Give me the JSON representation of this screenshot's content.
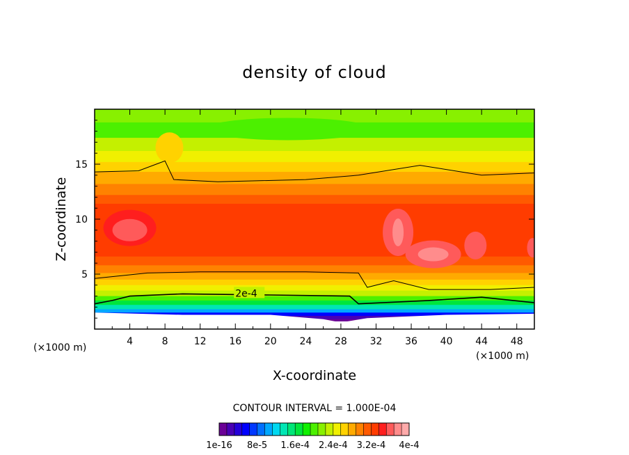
{
  "chart_data": {
    "type": "heatmap",
    "title": "density of cloud",
    "xlabel": "X-coordinate",
    "ylabel": "Z-coordinate",
    "x_unit_left": "(×1000 m)",
    "x_unit_right": "(×1000 m)",
    "xlim": [
      0,
      50
    ],
    "ylim": [
      0,
      20
    ],
    "x_ticks": [
      4,
      8,
      12,
      16,
      20,
      24,
      28,
      32,
      36,
      40,
      44,
      48
    ],
    "y_ticks": [
      5,
      10,
      15
    ],
    "contour_interval_text": "CONTOUR INTERVAL = 1.000E-04",
    "contour_label": "2e-4",
    "colorbar_labels": [
      "1e-16",
      "8e-5",
      "1.6e-4",
      "2.4e-4",
      "3.2e-4",
      "4e-4"
    ],
    "colorbar_colors": [
      "#6a0096",
      "#4800b4",
      "#2400d8",
      "#0000ff",
      "#0038ff",
      "#0070ff",
      "#00a8ff",
      "#00d8f0",
      "#00e6b4",
      "#00e678",
      "#00e63c",
      "#10f000",
      "#4cf000",
      "#88f000",
      "#c4f000",
      "#f0f000",
      "#ffd200",
      "#ffaa00",
      "#ff8200",
      "#ff5a00",
      "#ff3c00",
      "#ff1e1e",
      "#ff5a5a",
      "#ff8c8c",
      "#ffaaaa"
    ],
    "top_boundary_points": [
      [
        0,
        14.3
      ],
      [
        5,
        14.4
      ],
      [
        7,
        15.0
      ],
      [
        8,
        15.3
      ],
      [
        9,
        13.6
      ],
      [
        14,
        13.4
      ],
      [
        24,
        13.6
      ],
      [
        30,
        14.0
      ],
      [
        37,
        14.9
      ],
      [
        44,
        14.0
      ],
      [
        50,
        14.2
      ]
    ],
    "mid_boundary_points": [
      [
        0,
        4.6
      ],
      [
        6,
        5.1
      ],
      [
        12,
        5.2
      ],
      [
        24,
        5.2
      ],
      [
        30,
        5.1
      ],
      [
        31,
        3.8
      ],
      [
        34,
        4.4
      ],
      [
        38,
        3.6
      ],
      [
        45,
        3.6
      ],
      [
        50,
        3.8
      ]
    ],
    "contour_2e4_points": [
      [
        0,
        2.3
      ],
      [
        2,
        2.6
      ],
      [
        4,
        3.0
      ],
      [
        10,
        3.2
      ],
      [
        20,
        3.1
      ],
      [
        29,
        3.0
      ],
      [
        30,
        2.3
      ],
      [
        38,
        2.6
      ],
      [
        44,
        2.9
      ],
      [
        50,
        2.4
      ]
    ],
    "cloud_base_points": [
      [
        0,
        1.5
      ],
      [
        10,
        1.3
      ],
      [
        20,
        1.3
      ],
      [
        26,
        0.9
      ],
      [
        28,
        0.6
      ],
      [
        31,
        1.0
      ],
      [
        40,
        1.3
      ],
      [
        50,
        1.4
      ]
    ]
  }
}
